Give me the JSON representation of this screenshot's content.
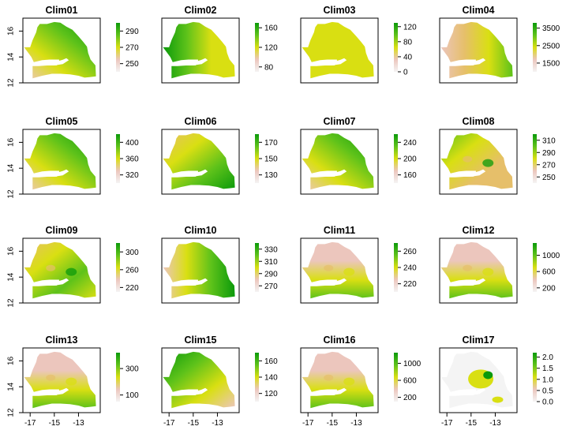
{
  "chart_data": {
    "type": "heatmap",
    "description": "",
    "grid": "4x4",
    "x_ticks": [
      "-17",
      "-15",
      "-13"
    ],
    "x_tick_values": [
      -17,
      -15,
      -13
    ],
    "y_ticks": [
      "12",
      "14",
      "16"
    ],
    "y_tick_values": [
      12,
      14,
      16
    ],
    "xlim": [
      -17.6,
      -11.2
    ],
    "ylim": [
      12.0,
      17.0
    ],
    "colors": {
      "high": "#0b9a0b",
      "mid_high": "#5ec21a",
      "mid": "#d9df12",
      "mid_low": "#e6bf6a",
      "low": "#ecc6bd",
      "lowest": "#f4f4f4"
    },
    "panels": [
      {
        "title": "Clim01",
        "legend_ticks": [
          "290",
          "270",
          "250"
        ],
        "range": [
          240,
          300
        ],
        "pattern": "ne_high"
      },
      {
        "title": "Clim02",
        "legend_ticks": [
          "160",
          "120",
          "80"
        ],
        "range": [
          70,
          170
        ],
        "pattern": "west_high"
      },
      {
        "title": "Clim03",
        "legend_ticks": [
          "120",
          "80",
          "40",
          "0"
        ],
        "range": [
          0,
          130
        ],
        "pattern": "uniform_low"
      },
      {
        "title": "Clim04",
        "legend_ticks": [
          "3500",
          "2500",
          "1500"
        ],
        "range": [
          1000,
          3800
        ],
        "pattern": "west_low"
      },
      {
        "title": "Clim05",
        "legend_ticks": [
          "400",
          "360",
          "320"
        ],
        "range": [
          300,
          420
        ],
        "pattern": "ne_high"
      },
      {
        "title": "Clim06",
        "legend_ticks": [
          "170",
          "150",
          "130"
        ],
        "range": [
          120,
          180
        ],
        "pattern": "se_high"
      },
      {
        "title": "Clim07",
        "legend_ticks": [
          "240",
          "200",
          "160"
        ],
        "range": [
          140,
          260
        ],
        "pattern": "ne_high"
      },
      {
        "title": "Clim08",
        "legend_ticks": [
          "310",
          "290",
          "270",
          "250"
        ],
        "range": [
          240,
          320
        ],
        "pattern": "patchy_mid"
      },
      {
        "title": "Clim09",
        "legend_ticks": [
          "300",
          "260",
          "220"
        ],
        "range": [
          210,
          320
        ],
        "pattern": "patchy_high"
      },
      {
        "title": "Clim10",
        "legend_ticks": [
          "330",
          "310",
          "290",
          "270"
        ],
        "range": [
          260,
          340
        ],
        "pattern": "east_high"
      },
      {
        "title": "Clim11",
        "legend_ticks": [
          "260",
          "240",
          "220"
        ],
        "range": [
          210,
          270
        ],
        "pattern": "south_high"
      },
      {
        "title": "Clim12",
        "legend_ticks": [
          "1000",
          "600",
          "200"
        ],
        "range": [
          100,
          1300
        ],
        "pattern": "south_high"
      },
      {
        "title": "Clim13",
        "legend_ticks": [
          "300",
          "100"
        ],
        "range": [
          50,
          420
        ],
        "pattern": "south_high"
      },
      {
        "title": "Clim15",
        "legend_ticks": [
          "160",
          "140",
          "120"
        ],
        "range": [
          110,
          170
        ],
        "pattern": "nw_high"
      },
      {
        "title": "Clim16",
        "legend_ticks": [
          "1000",
          "600",
          "200"
        ],
        "range": [
          100,
          1250
        ],
        "pattern": "south_high"
      },
      {
        "title": "Clim17",
        "legend_ticks": [
          "2.0",
          "1.5",
          "1.0",
          "0.5",
          "0.0"
        ],
        "range": [
          0,
          2.2
        ],
        "pattern": "categorical"
      }
    ]
  }
}
